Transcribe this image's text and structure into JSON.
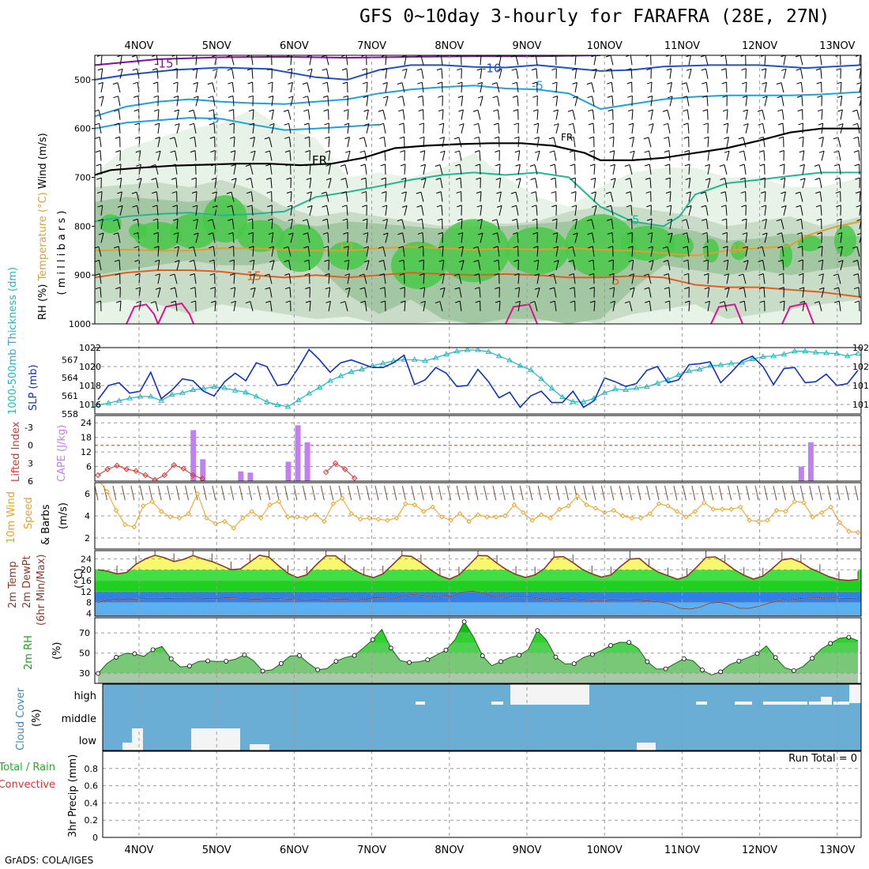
{
  "title": "GFS 0~10day 3-hourly for FARAFRA (28E, 27N)",
  "footer": "GrADS: COLA/IGES",
  "run_total_label": "Run Total = 0",
  "dates": [
    "4NOV",
    "5NOV",
    "6NOV",
    "7NOV",
    "8NOV",
    "9NOV",
    "10NOV",
    "11NOV",
    "12NOV",
    "13NOV"
  ],
  "colors": {
    "rh_fill": "#48c848",
    "rh_light": "#b8d8b8",
    "slp": "#1030c8",
    "thick": "#20b8c0",
    "li": "#e03030",
    "cape": "#c080f0",
    "wind10": "#f0a020",
    "temp": "#f8f870",
    "green": "#20d020",
    "blue_dew": "#3080e8",
    "cloud": "#6aaed6"
  },
  "chart_data": [
    {
      "type": "area",
      "panel": "vertical-profile",
      "ylabel_parts": [
        "RH (%)",
        "Temperature (°C)",
        "Wind (m/s)"
      ],
      "ylabel_sub": "( m i l l i b a r s )",
      "yticks": [
        "500",
        "600",
        "700",
        "800",
        "900",
        "1000"
      ],
      "ylim": [
        1000,
        450
      ],
      "isotherm_labels": [
        "-15",
        "-10",
        "-5",
        "FR",
        "FR",
        "5",
        "10",
        "15",
        "5",
        "10"
      ]
    },
    {
      "type": "line",
      "panel": "slp-thickness",
      "ylabel_left": "1000-500mb Thickness (dm)",
      "ylabel_right": "SLP (mb)",
      "yticks_slp": [
        "1016",
        "1018",
        "1020",
        "1022"
      ],
      "yticks_thick": [
        "558",
        "561",
        "564",
        "567"
      ],
      "series": [
        {
          "name": "SLP (mb)",
          "values": [
            1016.5,
            1018,
            1018.3,
            1017.2,
            1017.4,
            1019.4,
            1016.6,
            1017.5,
            1018.7,
            1018.5,
            1017.4,
            1016.9,
            1018.4,
            1019.3,
            1018.5,
            1020.4,
            1020,
            1018,
            1018.2,
            1019.9,
            1021.8,
            1020.7,
            1019.4,
            1020.4,
            1020.7,
            1020.3,
            1019.9,
            1019.9,
            1020.4,
            1021.2,
            1018.1,
            1018.6,
            1019.9,
            1019.3,
            1017.9,
            1018,
            1019.7,
            1018.4,
            1016.7,
            1017.3,
            1015.7,
            1016.9,
            1017.4,
            1016.2,
            1016.2,
            1017.4,
            1015.7,
            1016.4,
            1018.8,
            1018.4,
            1017.9,
            1018.2,
            1019.6,
            1020,
            1018.3,
            1018.6,
            1020.2,
            1020.3,
            1020.5,
            1018.3,
            1019.4,
            1020.6,
            1021.1,
            1020,
            1018.1,
            1019.8,
            1019.9,
            1018.3,
            1018.4,
            1019.2,
            1018,
            1018.2,
            1019.6
          ]
        },
        {
          "name": "Thickness (dm)",
          "values": [
            559.5,
            559.8,
            560.2,
            560.6,
            560.9,
            560.9,
            560.2,
            561.2,
            561.5,
            562,
            562.2,
            562.5,
            562.3,
            561.9,
            561.6,
            560.9,
            560,
            559.5,
            559.2,
            560.3,
            561.4,
            562.4,
            563.5,
            564.3,
            565,
            565.4,
            566,
            566.4,
            566.8,
            567,
            567,
            566.8,
            567.3,
            567.9,
            568.4,
            568.6,
            568.6,
            568.3,
            567.6,
            566.9,
            566,
            565.3,
            563.8,
            562.2,
            560.8,
            560,
            560,
            560.6,
            561.5,
            562.1,
            562,
            562.3,
            562.5,
            563.1,
            563.7,
            564.5,
            565.1,
            565.4,
            566,
            566.1,
            566.4,
            566.5,
            567.1,
            567.5,
            567.6,
            567.9,
            568.4,
            568.4,
            568.2,
            568.1,
            568,
            567.6,
            568
          ]
        }
      ]
    },
    {
      "type": "bar",
      "panel": "li-cape",
      "ylabel_left": "Lifted Index",
      "ylabel_right": "CAPE (J/kg)",
      "yticks_li": [
        "-3",
        "0",
        "3",
        "6"
      ],
      "yticks_cape": [
        "6",
        "12",
        "18",
        "24"
      ],
      "series": [
        {
          "name": "Lifted Index",
          "values": [
            5,
            4,
            3.4,
            4,
            4.3,
            5,
            5.8,
            5,
            3.3,
            3.9,
            5,
            5.6,
            null,
            null,
            null,
            null,
            null,
            null,
            null,
            null,
            null,
            null,
            null,
            null,
            4.5,
            3,
            4,
            5.5
          ]
        },
        {
          "name": "CAPE (J/kg)",
          "values": [
            [
              10,
              21
            ],
            [
              11,
              9
            ],
            [
              15,
              4
            ],
            [
              16,
              3.5
            ],
            [
              20,
              8
            ],
            [
              21,
              23
            ],
            [
              22,
              16
            ],
            [
              74,
              6
            ],
            [
              75,
              16
            ]
          ]
        }
      ]
    },
    {
      "type": "line",
      "panel": "wind10m",
      "ylabel_parts": [
        "10m Wind",
        "Speed",
        "& Barbs",
        "(m/s)"
      ],
      "yticks": [
        "2",
        "4",
        "6"
      ],
      "series": [
        {
          "name": "10m Wind Speed (m/s)",
          "values": [
            7.3,
            6.2,
            4.5,
            3.2,
            3,
            4.9,
            5.3,
            4.4,
            3.9,
            3.8,
            4.2,
            6,
            3.8,
            3.3,
            3.5,
            2.9,
            3.8,
            4.4,
            3.8,
            5,
            5.3,
            3.9,
            3.9,
            3.8,
            4.1,
            3.5,
            5.1,
            5.6,
            4.2,
            3.7,
            3.8,
            3.7,
            3.6,
            3.8,
            5.1,
            5,
            4.4,
            4.8,
            3.9,
            3.6,
            4.2,
            3.5,
            4.1,
            3.9,
            3.9,
            4,
            5,
            4.3,
            3.6,
            4.1,
            3.8,
            4.6,
            4.9,
            5.8,
            5,
            4.7,
            4.3,
            4.5,
            4,
            3.8,
            3.8,
            4.2,
            5.1,
            4.9,
            4.4,
            3.9,
            4.4,
            5.2,
            4.6,
            4.6,
            4.6,
            4.8,
            3.6,
            3.5,
            3.6,
            4.5,
            4.4,
            5.3,
            5.2,
            3.9,
            4.3,
            4.8,
            3.4,
            2.6,
            2.5
          ]
        }
      ]
    },
    {
      "type": "area",
      "panel": "temperature",
      "ylabel_parts": [
        "2m Temp",
        "2m DewPt",
        "(6hr Min/Max)"
      ],
      "ylabel_unit": "(°C)",
      "yticks": [
        "4",
        "8",
        "12",
        "16",
        "20",
        "24"
      ],
      "series": [
        {
          "name": "2m Temp (°C)",
          "values": [
            20,
            19.5,
            18.5,
            19,
            22,
            24,
            25.3,
            24.4,
            23,
            23.8,
            25.2,
            24,
            23,
            21.6,
            20,
            20.3,
            22.8,
            25.3,
            24.6,
            21.5,
            18.7,
            17.1,
            18.2,
            21.9,
            25.1,
            25.1,
            22.4,
            19.8,
            18.1,
            17.1,
            18.5,
            21.8,
            25.2,
            24.9,
            22.6,
            20,
            17.8,
            16.6,
            18.1,
            21.5,
            25.2,
            25.1,
            22.4,
            20,
            18.3,
            17.2,
            18.1,
            20.5,
            24.6,
            24.8,
            22.6,
            20.1,
            18.5,
            17.3,
            18.1,
            21.2,
            23.9,
            24.1,
            21.2,
            19.1,
            17.8,
            16.5,
            17.6,
            20.9,
            24.5,
            24.7,
            22.6,
            20,
            18,
            16.6,
            17.7,
            20.5,
            23.6,
            24.1,
            22.7,
            20.5,
            19,
            17.4,
            16.4,
            16.1,
            16.4
          ]
        },
        {
          "name": "2m DewPt (°C)",
          "values": [
            8.1,
            8.9,
            9.4,
            9.1,
            9.3,
            9.6,
            9.6,
            9.5,
            9.6,
            9.6,
            9.7,
            9.5,
            9.5,
            9.8,
            9.7,
            9.4,
            9.2,
            9.4,
            9.6,
            9.3,
            9.1,
            9,
            8.9,
            9,
            9.3,
            9.2,
            9,
            9.2,
            9.8,
            9.7,
            9.6,
            10.6,
            11,
            10.6,
            10,
            10.3,
            10.5,
            11.9,
            12.1,
            11.6,
            10.2,
            10.3,
            10,
            10,
            10,
            9.4,
            9,
            9.5,
            9.3,
            8.9,
            8.7,
            8.5,
            8.9,
            9,
            9,
            8.8,
            8.5,
            8.2,
            7.4,
            5.9,
            5.6,
            6.3,
            7.8,
            8.1,
            7.3,
            5.9,
            5.9,
            6.7,
            7.8,
            8.7,
            9,
            9.4,
            9.7,
            9.7,
            10,
            9.6,
            9.5,
            9.6
          ]
        }
      ]
    },
    {
      "type": "area",
      "panel": "rh2m",
      "ylabel": "2m RH",
      "ylabel_unit": "(%)",
      "yticks": [
        "30",
        "50",
        "70"
      ],
      "series": [
        {
          "name": "2m RH (%)",
          "values": [
            29.8,
            39.7,
            45.9,
            49.7,
            49.4,
            46.7,
            53.4,
            56.5,
            44.3,
            36.3,
            37.2,
            41.8,
            42.3,
            41.7,
            41.9,
            43.9,
            48.2,
            42.4,
            32.2,
            33.4,
            39.7,
            47.1,
            47.6,
            39.9,
            33.5,
            34.6,
            41.9,
            45.6,
            47.6,
            55.2,
            63.3,
            73.6,
            55,
            42.6,
            40.7,
            41.4,
            43.4,
            48.1,
            53,
            63.3,
            81.1,
            66.2,
            47.3,
            37.5,
            41.6,
            45.7,
            47.8,
            53.5,
            72.4,
            62.7,
            46.1,
            39.3,
            39.5,
            45.5,
            48.6,
            52.6,
            57.6,
            60.7,
            60.6,
            54.7,
            41.5,
            34.2,
            34.4,
            39.5,
            44.4,
            42.3,
            33.3,
            28.2,
            31.4,
            38.6,
            42.1,
            45.6,
            49.5,
            57.1,
            45.6,
            35.6,
            32.6,
            36.6,
            44.8,
            54.1,
            59.6,
            64.7,
            65.7,
            62.3
          ]
        }
      ]
    },
    {
      "type": "heatmap",
      "panel": "cloud-cover",
      "ylabel": "Cloud Cover",
      "ylabel_unit": "(%)",
      "levels": [
        "high",
        "middle",
        "low"
      ]
    },
    {
      "type": "bar",
      "panel": "precip",
      "ylabel_parts": [
        "Total / Rain",
        "Convective"
      ],
      "ylabel_main": "3hr Precip (mm)",
      "yticks": [
        "0",
        "0.2",
        "0.4",
        "0.6",
        "0.8"
      ],
      "ylim": [
        0,
        1
      ],
      "values": []
    }
  ]
}
